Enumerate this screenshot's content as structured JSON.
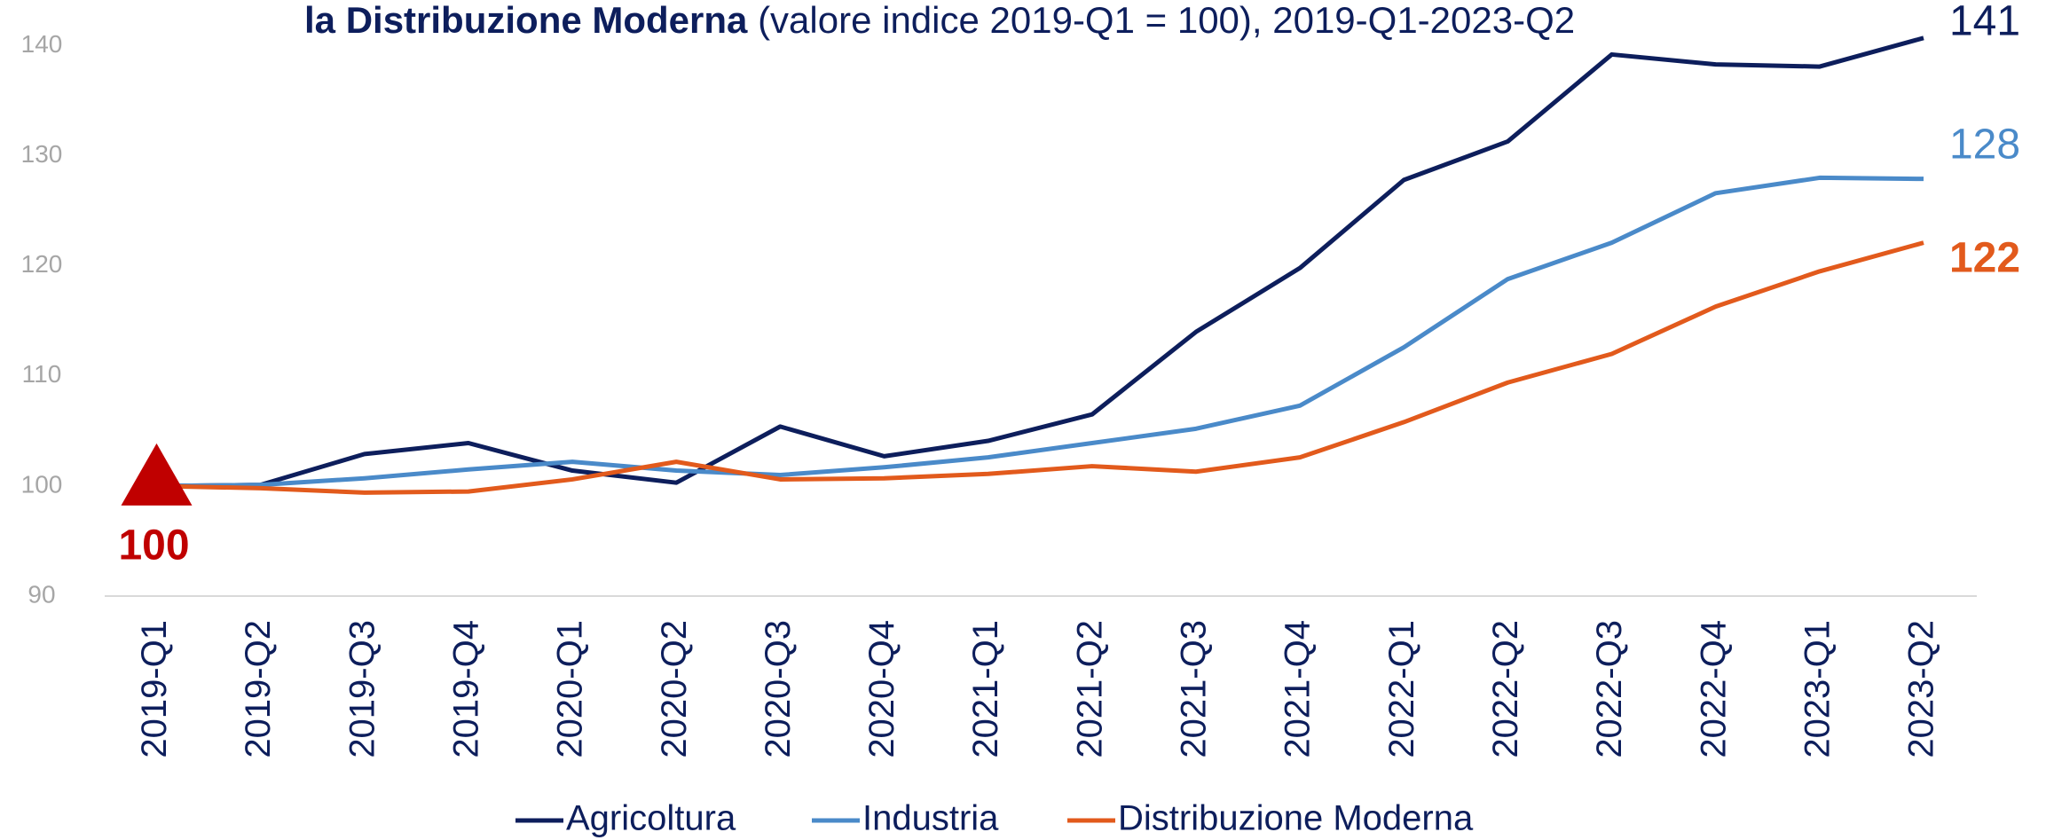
{
  "chart_data": {
    "type": "line",
    "title_parts": [
      "la Distribuzione Moderna",
      "(valore indice 2019-Q1 = 100), 2019-Q1-2023-Q2"
    ],
    "categories": [
      "2019-Q1",
      "2019-Q2",
      "2019-Q3",
      "2019-Q4",
      "2020-Q1",
      "2020-Q2",
      "2020-Q3",
      "2020-Q4",
      "2021-Q1",
      "2021-Q2",
      "2021-Q3",
      "2021-Q4",
      "2022-Q1",
      "2022-Q2",
      "2022-Q3",
      "2022-Q4",
      "2023-Q1",
      "2023-Q2"
    ],
    "series": [
      {
        "name": "Agricoltura",
        "color": "#0d1e5c",
        "end_label": "141",
        "values": [
          100,
          100.1,
          102.9,
          103.9,
          101.4,
          100.3,
          105.4,
          102.7,
          104.1,
          106.5,
          114.0,
          119.8,
          127.8,
          131.3,
          139.2,
          138.3,
          138.1,
          140.7
        ]
      },
      {
        "name": "Industria",
        "color": "#4a8ac9",
        "end_label": "128",
        "values": [
          100,
          100.1,
          100.7,
          101.5,
          102.2,
          101.4,
          101.0,
          101.7,
          102.6,
          103.9,
          105.2,
          107.3,
          112.6,
          118.8,
          122.1,
          126.6,
          128.0,
          127.9
        ]
      },
      {
        "name": "Distribuzione Moderna",
        "color": "#e25a1c",
        "end_label": "122",
        "values": [
          100,
          99.8,
          99.4,
          99.5,
          100.6,
          102.2,
          100.6,
          100.7,
          101.1,
          101.8,
          101.3,
          102.6,
          105.8,
          109.4,
          112.0,
          116.3,
          119.5,
          122.1
        ]
      }
    ],
    "start_annotation": {
      "label": "100",
      "value": 100,
      "color": "#c00000"
    },
    "ylim": [
      90,
      140
    ],
    "yticks": [
      90,
      100,
      110,
      120,
      130,
      140
    ],
    "legend": "bottom"
  }
}
